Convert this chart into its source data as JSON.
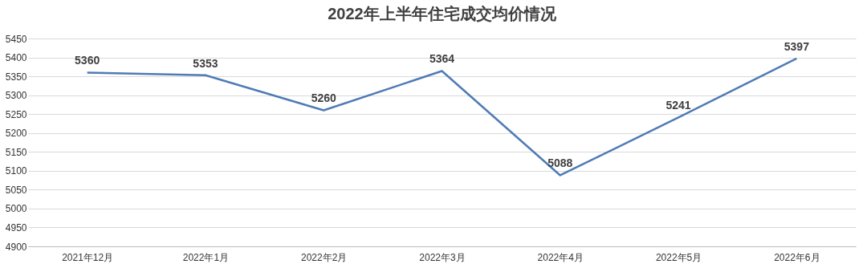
{
  "chart_data": {
    "type": "line",
    "title": "2022年上半年住宅成交均价情况",
    "categories": [
      "2021年12月",
      "2022年1月",
      "2022年2月",
      "2022年3月",
      "2022年4月",
      "2022年5月",
      "2022年6月"
    ],
    "series": [
      {
        "color": "#4f7bb5",
        "values": [
          5360,
          5353,
          5260,
          5364,
          5088,
          5241,
          5397
        ]
      }
    ],
    "ylim": [
      4900,
      5450
    ],
    "yticks": [
      4900,
      4950,
      5000,
      5050,
      5100,
      5150,
      5200,
      5250,
      5300,
      5350,
      5400,
      5450
    ],
    "grid": "y",
    "data_labels": true,
    "marker": "none",
    "line_style": "solid"
  }
}
